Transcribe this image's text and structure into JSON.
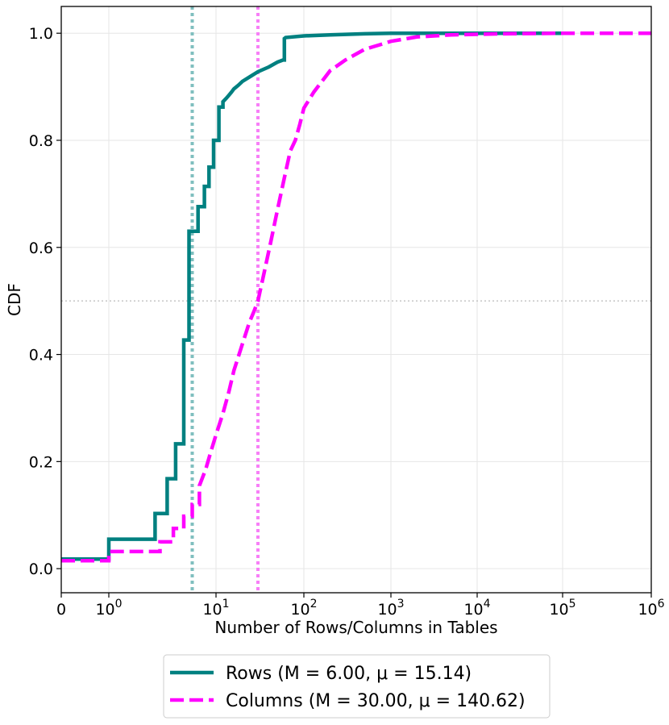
{
  "chart_data": {
    "type": "line",
    "subtype": "cdf",
    "title": "",
    "xlabel": "Number of Rows/Columns in Tables",
    "ylabel": "CDF",
    "xscale": "symlog",
    "xlim": [
      0,
      1000000
    ],
    "ylim": [
      -0.045,
      1.05
    ],
    "grid": true,
    "x_ticks": [
      {
        "value": 0,
        "base": "0",
        "exp": ""
      },
      {
        "value": 1,
        "base": "10",
        "exp": "0"
      },
      {
        "value": 10,
        "base": "10",
        "exp": "1"
      },
      {
        "value": 100,
        "base": "10",
        "exp": "2"
      },
      {
        "value": 1000,
        "base": "10",
        "exp": "3"
      },
      {
        "value": 10000,
        "base": "10",
        "exp": "4"
      },
      {
        "value": 100000,
        "base": "10",
        "exp": "5"
      },
      {
        "value": 1000000,
        "base": "10",
        "exp": "6"
      }
    ],
    "y_ticks": [
      {
        "value": 0.0,
        "label": "0.0"
      },
      {
        "value": 0.2,
        "label": "0.2"
      },
      {
        "value": 0.4,
        "label": "0.4"
      },
      {
        "value": 0.6,
        "label": "0.6"
      },
      {
        "value": 0.8,
        "label": "0.8"
      },
      {
        "value": 1.0,
        "label": "1.0"
      }
    ],
    "reference_lines": [
      {
        "name": "rows-median-line",
        "axis": "x",
        "value": 6,
        "color": "#7fbfbf",
        "style": "dotted"
      },
      {
        "name": "columns-median-line",
        "axis": "x",
        "value": 30,
        "color": "#f77ff7",
        "style": "dotted"
      },
      {
        "name": "half-cdf-line",
        "axis": "y",
        "value": 0.5,
        "color": "#bbbbbb",
        "style": "dotted"
      }
    ],
    "legend_position": "bottom-center",
    "series": [
      {
        "name": "Rows",
        "legend_label": "Rows (M = 6.00, μ = 15.14)",
        "color": "#008080",
        "style": "solid",
        "x": [
          0,
          1,
          1,
          2.7,
          2.7,
          3.5,
          3.5,
          4.2,
          4.2,
          5.0,
          5.0,
          5.6,
          5.6,
          6.0,
          6.0,
          6.8,
          6.8,
          7.8,
          7.8,
          8.6,
          8.6,
          9.5,
          9.5,
          10.8,
          10.8,
          12,
          12,
          13,
          14,
          15,
          16,
          18,
          20,
          25,
          30,
          40,
          50,
          58,
          60,
          60,
          62,
          100,
          200,
          500,
          1000,
          10000,
          100000
        ],
        "y": [
          0.018,
          0.018,
          0.055,
          0.055,
          0.103,
          0.103,
          0.168,
          0.168,
          0.233,
          0.233,
          0.427,
          0.427,
          0.63,
          0.63,
          0.63,
          0.63,
          0.676,
          0.676,
          0.714,
          0.714,
          0.75,
          0.75,
          0.8,
          0.8,
          0.862,
          0.862,
          0.872,
          0.878,
          0.884,
          0.89,
          0.896,
          0.903,
          0.91,
          0.92,
          0.928,
          0.937,
          0.946,
          0.95,
          0.95,
          0.99,
          0.992,
          0.995,
          0.997,
          0.999,
          1.0,
          1.0,
          1.0
        ]
      },
      {
        "name": "Columns",
        "legend_label": "Columns (M = 30.00, μ = 140.62)",
        "color": "#ff00ff",
        "style": "dashed",
        "x": [
          0,
          1,
          1,
          3,
          3,
          4,
          4,
          5,
          5,
          6,
          6,
          7,
          7,
          8,
          9,
          10,
          12,
          14,
          16,
          20,
          24,
          27,
          30,
          35,
          42,
          50,
          60,
          70,
          80,
          90,
          100,
          130,
          200,
          300,
          500,
          800,
          1000,
          2000,
          5000,
          20000,
          100000,
          1000000
        ],
        "y": [
          0.015,
          0.015,
          0.032,
          0.032,
          0.05,
          0.05,
          0.075,
          0.075,
          0.098,
          0.098,
          0.12,
          0.12,
          0.155,
          0.185,
          0.22,
          0.25,
          0.29,
          0.33,
          0.37,
          0.42,
          0.46,
          0.48,
          0.5,
          0.55,
          0.61,
          0.67,
          0.73,
          0.78,
          0.8,
          0.83,
          0.86,
          0.89,
          0.93,
          0.95,
          0.97,
          0.98,
          0.985,
          0.993,
          0.997,
          0.999,
          1.0,
          1.0
        ]
      }
    ]
  }
}
